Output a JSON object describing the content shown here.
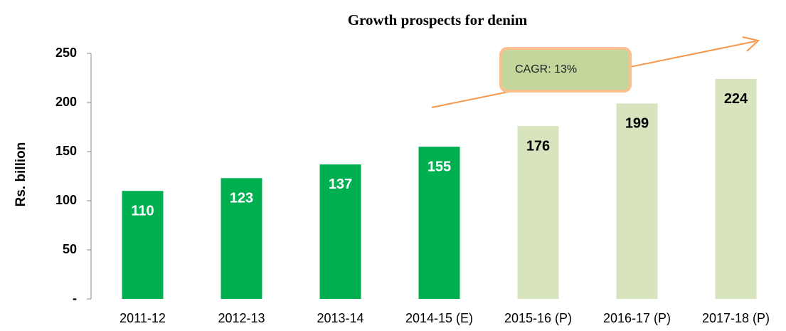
{
  "chart_data": {
    "type": "bar",
    "title": "Growth prospects for denim",
    "y_label": "Rs. billion",
    "categories": [
      "2011-12",
      "2012-13",
      "2013-14",
      "2014-15 (E)",
      "2015-16 (P)",
      "2016-17 (P)",
      "2017-18 (P)"
    ],
    "values": [
      110,
      123,
      137,
      155,
      176,
      199,
      224
    ],
    "colors": [
      "#00b050",
      "#00b050",
      "#00b050",
      "#00b050",
      "#d7e4bd",
      "#d7e4bd",
      "#d7e4bd"
    ],
    "label_colors": [
      "#ffffff",
      "#ffffff",
      "#ffffff",
      "#ffffff",
      "#000000",
      "#000000",
      "#000000"
    ],
    "ylim": [
      0,
      250
    ],
    "yticks": [
      {
        "value": 0,
        "label": "-"
      },
      50,
      100,
      150,
      200,
      250
    ],
    "annotation": "CAGR: 13%"
  }
}
